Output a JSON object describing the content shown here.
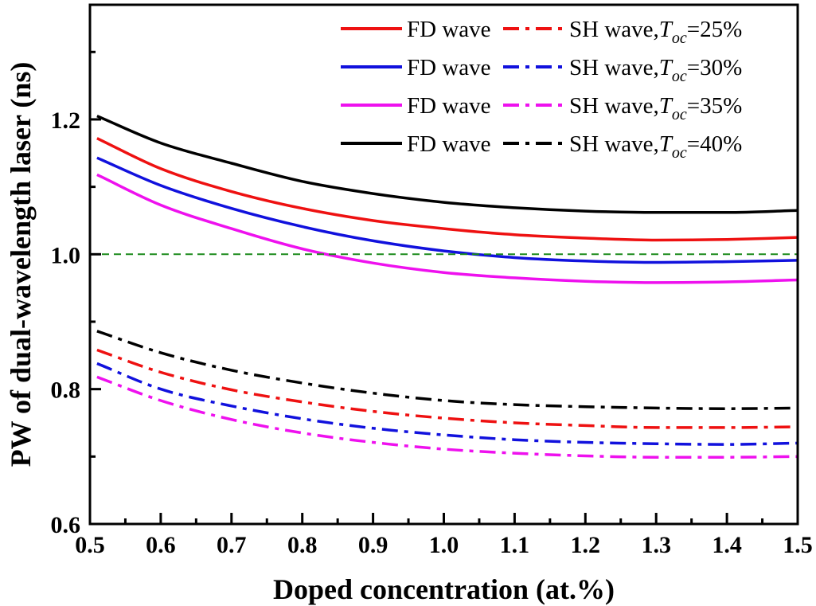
{
  "chart_data": {
    "type": "line",
    "xlabel": "Doped concentration (at.%)",
    "ylabel": "PW of dual-wavelength laser (ns)",
    "xlim": [
      0.5,
      1.5
    ],
    "ylim": [
      0.6,
      1.37
    ],
    "xticks": [
      "0.5",
      "0.6",
      "0.7",
      "0.8",
      "0.9",
      "1.0",
      "1.1",
      "1.2",
      "1.3",
      "1.4",
      "1.5"
    ],
    "yticks": [
      "0.6",
      "0.8",
      "1.0",
      "1.2"
    ],
    "grid": false,
    "reference_line": {
      "y": 1.0,
      "color": "#1a8a1a",
      "style": "dashed"
    },
    "legend_position": "top-right",
    "legend": [
      {
        "fd_label": "FD wave",
        "sh_label": "SH wave,",
        "t_sym": "T",
        "t_sub": "oc",
        "t_val": "=25%",
        "color": "#ee1111"
      },
      {
        "fd_label": "FD wave",
        "sh_label": "SH wave,",
        "t_sym": "T",
        "t_sub": "oc",
        "t_val": "=30%",
        "color": "#1111dd"
      },
      {
        "fd_label": "FD wave",
        "sh_label": "SH wave,",
        "t_sym": "T",
        "t_sub": "oc",
        "t_val": "=35%",
        "color": "#ee11ee"
      },
      {
        "fd_label": "FD wave",
        "sh_label": "SH wave,",
        "t_sym": "T",
        "t_sub": "oc",
        "t_val": "=40%",
        "color": "#000000"
      }
    ],
    "x": [
      0.51,
      0.6,
      0.7,
      0.8,
      0.9,
      1.0,
      1.1,
      1.2,
      1.3,
      1.4,
      1.5
    ],
    "series": [
      {
        "toc": "25%",
        "wave": "FD",
        "style": "solid",
        "color": "#ee1111",
        "values": [
          1.172,
          1.127,
          1.093,
          1.068,
          1.05,
          1.038,
          1.029,
          1.024,
          1.021,
          1.022,
          1.025
        ]
      },
      {
        "toc": "30%",
        "wave": "FD",
        "style": "solid",
        "color": "#1111dd",
        "values": [
          1.143,
          1.102,
          1.068,
          1.041,
          1.02,
          1.005,
          0.995,
          0.99,
          0.988,
          0.989,
          0.991
        ]
      },
      {
        "toc": "35%",
        "wave": "FD",
        "style": "solid",
        "color": "#ee11ee",
        "values": [
          1.118,
          1.073,
          1.038,
          1.008,
          0.987,
          0.973,
          0.965,
          0.96,
          0.958,
          0.959,
          0.962
        ]
      },
      {
        "toc": "40%",
        "wave": "FD",
        "style": "solid",
        "color": "#000000",
        "values": [
          1.205,
          1.165,
          1.135,
          1.108,
          1.09,
          1.077,
          1.069,
          1.064,
          1.062,
          1.062,
          1.065
        ]
      },
      {
        "toc": "25%",
        "wave": "SH",
        "style": "dashdot",
        "color": "#ee1111",
        "values": [
          0.858,
          0.825,
          0.799,
          0.781,
          0.767,
          0.757,
          0.75,
          0.746,
          0.743,
          0.743,
          0.744
        ]
      },
      {
        "toc": "30%",
        "wave": "SH",
        "style": "dashdot",
        "color": "#1111dd",
        "values": [
          0.838,
          0.8,
          0.775,
          0.756,
          0.742,
          0.732,
          0.725,
          0.721,
          0.719,
          0.718,
          0.72
        ]
      },
      {
        "toc": "35%",
        "wave": "SH",
        "style": "dashdot",
        "color": "#ee11ee",
        "values": [
          0.818,
          0.783,
          0.755,
          0.735,
          0.721,
          0.711,
          0.705,
          0.701,
          0.699,
          0.699,
          0.7
        ]
      },
      {
        "toc": "40%",
        "wave": "SH",
        "style": "dashdot",
        "color": "#000000",
        "values": [
          0.886,
          0.854,
          0.828,
          0.809,
          0.794,
          0.783,
          0.777,
          0.774,
          0.772,
          0.771,
          0.772
        ]
      }
    ]
  }
}
